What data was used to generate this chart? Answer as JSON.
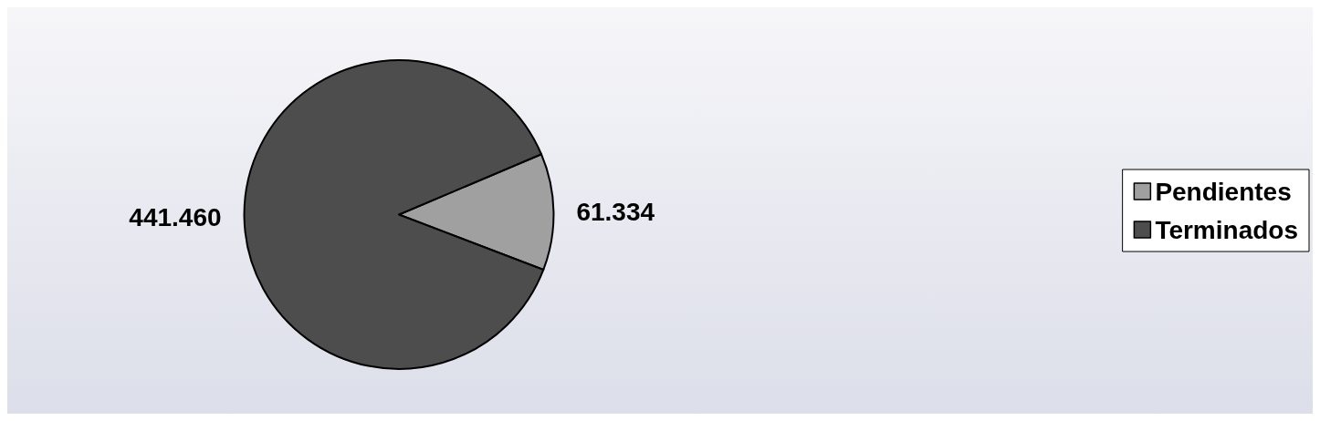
{
  "chart_data": {
    "type": "pie",
    "categories": [
      "Pendientes",
      "Terminados"
    ],
    "values": [
      61334,
      441460
    ],
    "value_labels": [
      "61.334",
      "441.460"
    ],
    "colors": [
      "#a0a0a0",
      "#4d4d4d"
    ],
    "legend": "right"
  }
}
